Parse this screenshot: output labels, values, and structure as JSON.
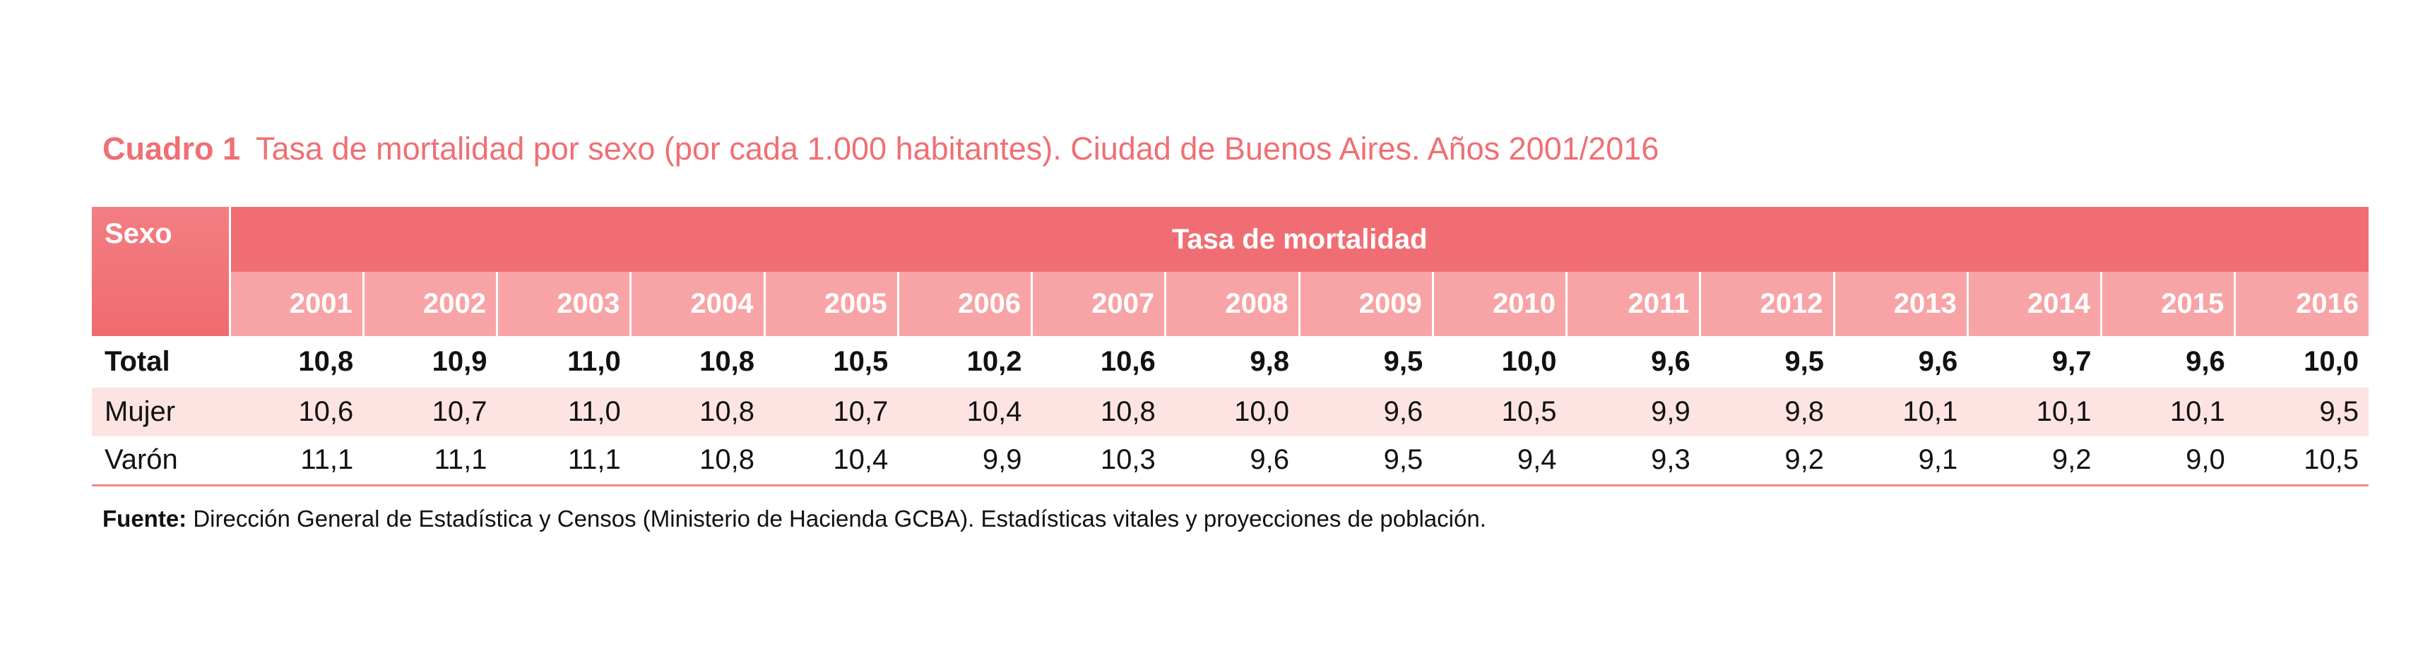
{
  "caption": {
    "label": "Cuadro 1",
    "title": "Tasa de mortalidad por sexo (por cada 1.000 habitantes). Ciudad de Buenos Aires. Años 2001/2016"
  },
  "table": {
    "sexo_header": "Sexo",
    "group_header": "Tasa de mortalidad",
    "years": [
      "2001",
      "2002",
      "2003",
      "2004",
      "2005",
      "2006",
      "2007",
      "2008",
      "2009",
      "2010",
      "2011",
      "2012",
      "2013",
      "2014",
      "2015",
      "2016"
    ],
    "rows": [
      {
        "label": "Total",
        "values": [
          "10,8",
          "10,9",
          "11,0",
          "10,8",
          "10,5",
          "10,2",
          "10,6",
          "9,8",
          "9,5",
          "10,0",
          "9,6",
          "9,5",
          "9,6",
          "9,7",
          "9,6",
          "10,0"
        ]
      },
      {
        "label": "Mujer",
        "values": [
          "10,6",
          "10,7",
          "11,0",
          "10,8",
          "10,7",
          "10,4",
          "10,8",
          "10,0",
          "9,6",
          "10,5",
          "9,9",
          "9,8",
          "10,1",
          "10,1",
          "10,1",
          "9,5"
        ]
      },
      {
        "label": "Varón",
        "values": [
          "11,1",
          "11,1",
          "11,1",
          "10,8",
          "10,4",
          "9,9",
          "10,3",
          "9,6",
          "9,5",
          "9,4",
          "9,3",
          "9,2",
          "9,1",
          "9,2",
          "9,0",
          "10,5"
        ]
      }
    ]
  },
  "source": {
    "label": "Fuente:",
    "text": "Dirección General de Estadística y Censos (Ministerio de Hacienda GCBA). Estadísticas vitales y proyecciones de población."
  },
  "colors": {
    "accent": "#ef6f74",
    "header_dark": "#f06e73",
    "header_light": "#f8a4a6",
    "row_shade": "#fde4e3"
  }
}
